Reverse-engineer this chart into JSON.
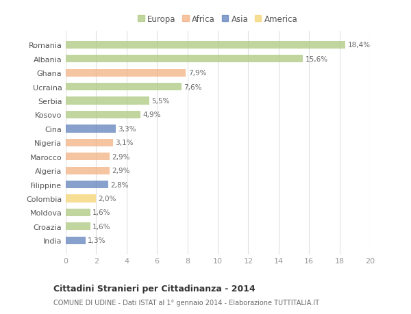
{
  "countries": [
    "Romania",
    "Albania",
    "Ghana",
    "Ucraina",
    "Serbia",
    "Kosovo",
    "Cina",
    "Nigeria",
    "Marocco",
    "Algeria",
    "Filippine",
    "Colombia",
    "Moldova",
    "Croazia",
    "India"
  ],
  "values": [
    18.4,
    15.6,
    7.9,
    7.6,
    5.5,
    4.9,
    3.3,
    3.1,
    2.9,
    2.9,
    2.8,
    2.0,
    1.6,
    1.6,
    1.3
  ],
  "labels": [
    "18,4%",
    "15,6%",
    "7,9%",
    "7,6%",
    "5,5%",
    "4,9%",
    "3,3%",
    "3,1%",
    "2,9%",
    "2,9%",
    "2,8%",
    "2,0%",
    "1,6%",
    "1,6%",
    "1,3%"
  ],
  "continents": [
    "Europa",
    "Europa",
    "Africa",
    "Europa",
    "Europa",
    "Europa",
    "Asia",
    "Africa",
    "Africa",
    "Africa",
    "Asia",
    "America",
    "Europa",
    "Europa",
    "Asia"
  ],
  "colors": {
    "Europa": "#adc97e",
    "Africa": "#f2b082",
    "Asia": "#6080bc",
    "America": "#f5d472"
  },
  "legend_order": [
    "Europa",
    "Africa",
    "Asia",
    "America"
  ],
  "xlim": [
    0,
    20
  ],
  "xticks": [
    0,
    2,
    4,
    6,
    8,
    10,
    12,
    14,
    16,
    18,
    20
  ],
  "title": "Cittadini Stranieri per Cittadinanza - 2014",
  "subtitle": "COMUNE DI UDINE - Dati ISTAT al 1° gennaio 2014 - Elaborazione TUTTITALIA.IT",
  "bg_color": "#ffffff",
  "bar_alpha": 0.75,
  "bar_height": 0.55
}
